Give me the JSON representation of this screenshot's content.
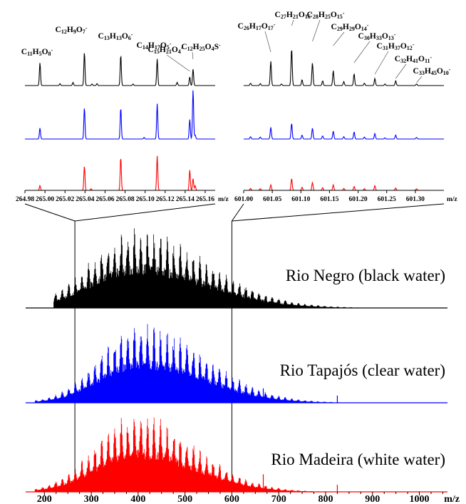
{
  "chart_data": [
    {
      "type": "line",
      "panel": "full-spectrum",
      "xlabel": "m/z",
      "xlim": [
        160,
        1060
      ],
      "x_ticks": [
        "200",
        "300",
        "400",
        "500",
        "600",
        "700",
        "800",
        "900",
        "1000"
      ],
      "x_tick_values": [
        200,
        300,
        400,
        500,
        600,
        700,
        800,
        900,
        1000
      ],
      "zoom_marks": [
        265,
        600
      ],
      "series": [
        {
          "name": "Rio Negro (black water)",
          "color": "#000000",
          "range": [
            220,
            1000
          ],
          "peak": 395,
          "sigma_left": 95,
          "sigma_right": 150,
          "spikes": []
        },
        {
          "name": "Rio Tapajós (clear water)",
          "color": "#0000ff",
          "range": [
            180,
            1000
          ],
          "peak": 405,
          "sigma_left": 85,
          "sigma_right": 135,
          "spikes": [
            {
              "x": 667,
              "h": 0.18
            },
            {
              "x": 825,
              "h": 0.09
            }
          ]
        },
        {
          "name": "Rio Madeira (white water)",
          "color": "#ff0000",
          "range": [
            180,
            1000
          ],
          "peak": 395,
          "sigma_left": 85,
          "sigma_right": 125,
          "spikes": [
            {
              "x": 667,
              "h": 0.22
            },
            {
              "x": 825,
              "h": 0.09
            }
          ]
        }
      ]
    },
    {
      "type": "line",
      "panel": "zoom-265",
      "xlabel": "m/z",
      "xlim": [
        264.98,
        265.17
      ],
      "x_ticks": [
        "264.98",
        "265.00",
        "265.02",
        "265.04",
        "265.06",
        "265.08",
        "265.10",
        "265.12",
        "265.14",
        "265.16"
      ],
      "x_tick_values": [
        264.98,
        265.0,
        265.02,
        265.04,
        265.06,
        265.08,
        265.1,
        265.12,
        265.14,
        265.16
      ],
      "peak_labels": [
        {
          "text": "C11H5O8-",
          "parts": [
            [
              "C",
              ""
            ],
            [
              "11",
              "sub"
            ],
            [
              "H",
              ""
            ],
            [
              "5",
              "sub"
            ],
            [
              "O",
              ""
            ],
            [
              "8",
              "sub"
            ],
            [
              "-",
              "sup"
            ]
          ],
          "x": 264.995
        },
        {
          "text": "C12H9O7-",
          "parts": [
            [
              "C",
              ""
            ],
            [
              "12",
              "sub"
            ],
            [
              "H",
              ""
            ],
            [
              "9",
              "sub"
            ],
            [
              "O",
              ""
            ],
            [
              "7",
              "sub"
            ],
            [
              "-",
              "sup"
            ]
          ],
          "x": 265.0394
        },
        {
          "text": "C13H13O6-",
          "parts": [
            [
              "C",
              ""
            ],
            [
              "13",
              "sub"
            ],
            [
              "H",
              ""
            ],
            [
              "13",
              "sub"
            ],
            [
              "O",
              ""
            ],
            [
              "6",
              "sub"
            ],
            [
              "-",
              "sup"
            ]
          ],
          "x": 265.0757
        },
        {
          "text": "C14H17O5-",
          "parts": [
            [
              "C",
              ""
            ],
            [
              "14",
              "sub"
            ],
            [
              "H",
              ""
            ],
            [
              "17",
              "sub"
            ],
            [
              "O",
              ""
            ],
            [
              "5",
              "sub"
            ],
            [
              "-",
              "sup"
            ]
          ],
          "x": 265.1121
        },
        {
          "text": "C15H21O4-",
          "parts": [
            [
              "C",
              ""
            ],
            [
              "15",
              "sub"
            ],
            [
              "H",
              ""
            ],
            [
              "21",
              "sub"
            ],
            [
              "O",
              ""
            ],
            [
              "4",
              "sub"
            ],
            [
              "-",
              "sup"
            ]
          ],
          "x": 265.1446
        },
        {
          "text": "C12H25O4S-",
          "parts": [
            [
              "C",
              ""
            ],
            [
              "12",
              "sub"
            ],
            [
              "H",
              ""
            ],
            [
              "25",
              "sub"
            ],
            [
              "O",
              ""
            ],
            [
              "4",
              "sub"
            ],
            [
              "S",
              ""
            ],
            [
              "-",
              "sup"
            ]
          ],
          "x": 265.1479
        }
      ],
      "series": [
        {
          "name": "Rio Negro (black water)",
          "color": "#000000",
          "peaks": [
            [
              264.995,
              0.58
            ],
            [
              265.0394,
              0.85
            ],
            [
              265.0757,
              0.78
            ],
            [
              265.1121,
              0.68
            ],
            [
              265.1446,
              0.22
            ],
            [
              265.1479,
              0.42
            ],
            [
              265.015,
              0.05
            ],
            [
              265.028,
              0.08
            ],
            [
              265.047,
              0.04
            ],
            [
              265.052,
              0.05
            ],
            [
              265.088,
              0.04
            ],
            [
              265.132,
              0.08
            ]
          ]
        },
        {
          "name": "Rio Tapajós (clear water)",
          "color": "#0000ff",
          "peaks": [
            [
              264.995,
              0.28
            ],
            [
              265.0394,
              0.8
            ],
            [
              265.0757,
              0.8
            ],
            [
              265.1121,
              0.9
            ],
            [
              265.1446,
              0.5
            ],
            [
              265.1479,
              1.25
            ],
            [
              265.099,
              0.04
            ],
            [
              265.15,
              0.1
            ]
          ]
        },
        {
          "name": "Rio Madeira (white water)",
          "color": "#ff0000",
          "peaks": [
            [
              264.995,
              0.12
            ],
            [
              265.0394,
              0.62
            ],
            [
              265.0757,
              0.85
            ],
            [
              265.1121,
              0.88
            ],
            [
              265.1446,
              0.52
            ],
            [
              265.1479,
              0.3
            ],
            [
              265.046,
              0.04
            ],
            [
              265.15,
              0.12
            ]
          ]
        }
      ]
    },
    {
      "type": "line",
      "panel": "zoom-601",
      "xlabel": "m/z",
      "xlim": [
        601.0,
        601.35
      ],
      "x_ticks": [
        "601.00",
        "601.05",
        "601.10",
        "601.15",
        "601.20",
        "601.25",
        "601.30"
      ],
      "x_tick_values": [
        601.0,
        601.05,
        601.1,
        601.15,
        601.2,
        601.25,
        601.3
      ],
      "peak_labels": [
        {
          "text": "C26H17O17-",
          "parts": [
            [
              "C",
              ""
            ],
            [
              "26",
              "sub"
            ],
            [
              "H",
              ""
            ],
            [
              "17",
              "sub"
            ],
            [
              "O",
              ""
            ],
            [
              "17",
              "sub"
            ],
            [
              "-",
              "sup"
            ]
          ],
          "x": 601.0474
        },
        {
          "text": "C27H21O16-",
          "parts": [
            [
              "C",
              ""
            ],
            [
              "27",
              "sub"
            ],
            [
              "H",
              ""
            ],
            [
              "21",
              "sub"
            ],
            [
              "O",
              ""
            ],
            [
              "16",
              "sub"
            ],
            [
              "-",
              "sup"
            ]
          ],
          "x": 601.0838
        },
        {
          "text": "C28H25O15-",
          "parts": [
            [
              "C",
              ""
            ],
            [
              "28",
              "sub"
            ],
            [
              "H",
              ""
            ],
            [
              "25",
              "sub"
            ],
            [
              "O",
              ""
            ],
            [
              "15",
              "sub"
            ],
            [
              "-",
              "sup"
            ]
          ],
          "x": 601.1202
        },
        {
          "text": "C29H29O14-",
          "parts": [
            [
              "C",
              ""
            ],
            [
              "29",
              "sub"
            ],
            [
              "H",
              ""
            ],
            [
              "29",
              "sub"
            ],
            [
              "O",
              ""
            ],
            [
              "14",
              "sub"
            ],
            [
              "-",
              "sup"
            ]
          ],
          "x": 601.1566
        },
        {
          "text": "C30H33O13-",
          "parts": [
            [
              "C",
              ""
            ],
            [
              "30",
              "sub"
            ],
            [
              "H",
              ""
            ],
            [
              "33",
              "sub"
            ],
            [
              "O",
              ""
            ],
            [
              "13",
              "sub"
            ],
            [
              "-",
              "sup"
            ]
          ],
          "x": 601.193
        },
        {
          "text": "C31H37O12-",
          "parts": [
            [
              "C",
              ""
            ],
            [
              "31",
              "sub"
            ],
            [
              "H",
              ""
            ],
            [
              "37",
              "sub"
            ],
            [
              "O",
              ""
            ],
            [
              "12",
              "sub"
            ],
            [
              "-",
              "sup"
            ]
          ],
          "x": 601.2293
        },
        {
          "text": "C32H41O11-",
          "parts": [
            [
              "C",
              ""
            ],
            [
              "32",
              "sub"
            ],
            [
              "H",
              ""
            ],
            [
              "41",
              "sub"
            ],
            [
              "O",
              ""
            ],
            [
              "11",
              "sub"
            ],
            [
              "-",
              "sup"
            ]
          ],
          "x": 601.2657
        },
        {
          "text": "C33H45O10-",
          "parts": [
            [
              "C",
              ""
            ],
            [
              "33",
              "sub"
            ],
            [
              "H",
              ""
            ],
            [
              "45",
              "sub"
            ],
            [
              "O",
              ""
            ],
            [
              "10",
              "sub"
            ],
            [
              "-",
              "sup"
            ]
          ],
          "x": 601.3021
        }
      ],
      "series": [
        {
          "name": "Rio Negro (black water)",
          "color": "#000000",
          "peaks": [
            [
              601.0474,
              0.62
            ],
            [
              601.0838,
              0.95
            ],
            [
              601.1202,
              0.58
            ],
            [
              601.1566,
              0.38
            ],
            [
              601.193,
              0.3
            ],
            [
              601.2293,
              0.18
            ],
            [
              601.2657,
              0.12
            ],
            [
              601.3021,
              0.04
            ],
            [
              601.012,
              0.06
            ],
            [
              601.029,
              0.05
            ],
            [
              601.066,
              0.04
            ],
            [
              601.102,
              0.15
            ],
            [
              601.138,
              0.12
            ],
            [
              601.175,
              0.1
            ],
            [
              601.211,
              0.06
            ],
            [
              601.247,
              0.04
            ]
          ]
        },
        {
          "name": "Rio Tapajós (clear water)",
          "color": "#0000ff",
          "peaks": [
            [
              601.0474,
              0.3
            ],
            [
              601.0838,
              0.4
            ],
            [
              601.1202,
              0.28
            ],
            [
              601.1566,
              0.2
            ],
            [
              601.193,
              0.18
            ],
            [
              601.2293,
              0.14
            ],
            [
              601.2657,
              0.1
            ],
            [
              601.3021,
              0.04
            ],
            [
              601.012,
              0.06
            ],
            [
              601.029,
              0.05
            ],
            [
              601.102,
              0.1
            ],
            [
              601.138,
              0.08
            ],
            [
              601.175,
              0.06
            ],
            [
              601.211,
              0.05
            ],
            [
              601.247,
              0.03
            ]
          ]
        },
        {
          "name": "Rio Madeira (white water)",
          "color": "#ff0000",
          "peaks": [
            [
              601.0474,
              0.14
            ],
            [
              601.0838,
              0.3
            ],
            [
              601.1202,
              0.2
            ],
            [
              601.1566,
              0.14
            ],
            [
              601.193,
              0.1
            ],
            [
              601.2293,
              0.12
            ],
            [
              601.2657,
              0.06
            ],
            [
              601.3021,
              0.04
            ],
            [
              601.012,
              0.05
            ],
            [
              601.029,
              0.04
            ],
            [
              601.102,
              0.08
            ],
            [
              601.138,
              0.07
            ],
            [
              601.175,
              0.05
            ],
            [
              601.211,
              0.04
            ]
          ]
        }
      ]
    }
  ]
}
